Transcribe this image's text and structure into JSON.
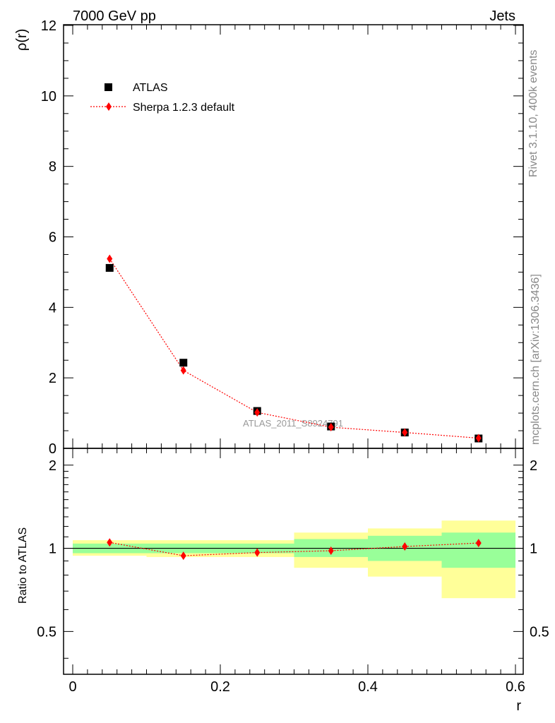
{
  "header": {
    "left": "7000 GeV pp",
    "right": "Jets"
  },
  "side_text": {
    "top": "Rivet 3.1.10,  400k events",
    "bottom": "mcplots.cern.ch [arXiv:1306.3436]"
  },
  "watermark": "ATLAS_2011_S8924791",
  "colors": {
    "data": "#000000",
    "mc": "#ff0000",
    "band_inner": "#99ff99",
    "band_outer": "#ffff99"
  },
  "chart_data": [
    {
      "type": "scatter",
      "ylabel": "ρ(r)",
      "xlim": [
        -0.015,
        0.6
      ],
      "ylim": [
        0,
        12
      ],
      "y_ticks": [
        0,
        2,
        4,
        6,
        8,
        10,
        12
      ],
      "legend_placement": "top-left",
      "series": [
        {
          "name": "ATLAS",
          "marker": "square",
          "x": [
            0.05,
            0.15,
            0.25,
            0.35,
            0.45,
            0.55
          ],
          "y": [
            5.12,
            2.43,
            1.06,
            0.62,
            0.45,
            0.28
          ]
        },
        {
          "name": "Sherpa 1.2.3 default",
          "marker": "diamond",
          "line": "dotted",
          "x": [
            0.05,
            0.15,
            0.25,
            0.35,
            0.45,
            0.55
          ],
          "y": [
            5.38,
            2.21,
            1.02,
            0.6,
            0.45,
            0.29
          ]
        }
      ]
    },
    {
      "type": "line",
      "ylabel": "Ratio to ATLAS",
      "xlabel": "r",
      "xlim": [
        -0.015,
        0.6
      ],
      "ylim": [
        0.35,
        2.3
      ],
      "y_ticks": [
        0.5,
        1,
        2
      ],
      "x_ticks": [
        0,
        0.2,
        0.4,
        0.6
      ],
      "x_tick_labels": [
        "0",
        "0.2",
        "0.4",
        "0.6"
      ],
      "reference": 1,
      "bins": [
        [
          0,
          0.1
        ],
        [
          0.1,
          0.2
        ],
        [
          0.2,
          0.3
        ],
        [
          0.3,
          0.4
        ],
        [
          0.4,
          0.5
        ],
        [
          0.5,
          0.6
        ]
      ],
      "band_outer": [
        [
          0.94,
          1.07
        ],
        [
          0.93,
          1.07
        ],
        [
          0.93,
          1.07
        ],
        [
          0.85,
          1.14
        ],
        [
          0.79,
          1.18
        ],
        [
          0.66,
          1.26
        ]
      ],
      "band_inner": [
        [
          0.96,
          1.04
        ],
        [
          0.96,
          1.04
        ],
        [
          0.96,
          1.04
        ],
        [
          0.93,
          1.08
        ],
        [
          0.9,
          1.11
        ],
        [
          0.85,
          1.14
        ]
      ],
      "series": [
        {
          "name": "Sherpa 1.2.3 default",
          "x": [
            0.05,
            0.15,
            0.25,
            0.35,
            0.45,
            0.55
          ],
          "y": [
            1.05,
            0.94,
            0.965,
            0.98,
            1.015,
            1.045
          ]
        }
      ]
    }
  ]
}
